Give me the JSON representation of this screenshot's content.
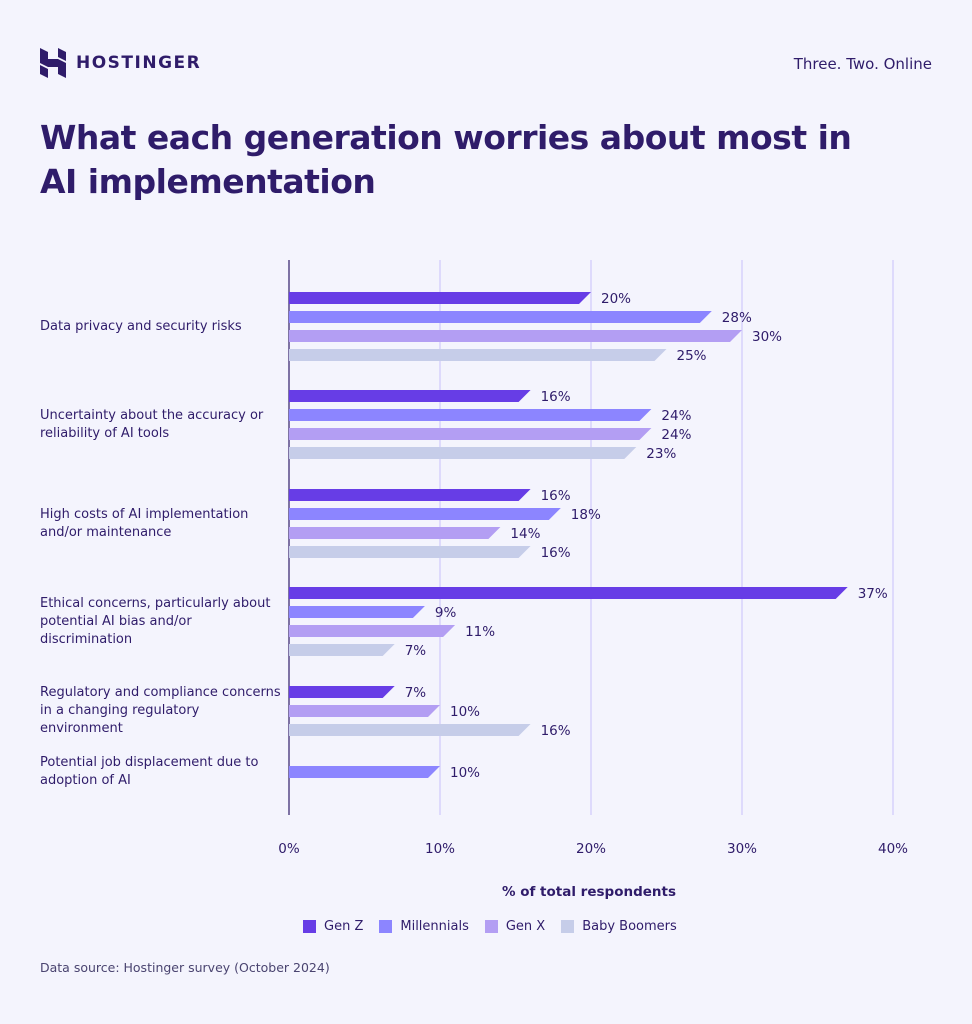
{
  "header": {
    "brand": "HOSTINGER",
    "tagline": "Three. Two. Online"
  },
  "source": "Data source: Hostinger survey (October 2024)",
  "chart_data": {
    "type": "bar",
    "orientation": "horizontal",
    "title": "What each generation worries about most in AI implementation",
    "xlabel": "% of total respondents",
    "xlim": [
      0,
      40
    ],
    "xticks": [
      "0%",
      "10%",
      "20%",
      "30%",
      "40%"
    ],
    "grid": true,
    "legend_position": "bottom",
    "series": [
      {
        "name": "Gen Z",
        "color": "#673de6"
      },
      {
        "name": "Millennials",
        "color": "#8c85ff"
      },
      {
        "name": "Gen X",
        "color": "#b39ef3"
      },
      {
        "name": "Baby Boomers",
        "color": "#c6cde9"
      }
    ],
    "categories": [
      {
        "label": "Data privacy and security risks",
        "values": {
          "Gen Z": 20,
          "Millennials": 28,
          "Gen X": 30,
          "Baby Boomers": 25
        }
      },
      {
        "label": "Uncertainty about the accuracy or reliability of AI tools",
        "values": {
          "Gen Z": 16,
          "Millennials": 24,
          "Gen X": 24,
          "Baby Boomers": 23
        }
      },
      {
        "label": "High costs of AI implementation and/or maintenance",
        "values": {
          "Gen Z": 16,
          "Millennials": 18,
          "Gen X": 14,
          "Baby Boomers": 16
        }
      },
      {
        "label": "Ethical concerns, particularly about potential AI bias and/or discrimination",
        "values": {
          "Gen Z": 37,
          "Millennials": 9,
          "Gen X": 11,
          "Baby Boomers": 7
        }
      },
      {
        "label": "Regulatory and compliance concerns in a changing regulatory environment",
        "values": {
          "Gen Z": 7,
          "Gen X": 10,
          "Baby Boomers": 16
        }
      },
      {
        "label": "Potential job displacement due to adoption of AI",
        "values": {
          "Millennials": 10
        }
      }
    ]
  }
}
